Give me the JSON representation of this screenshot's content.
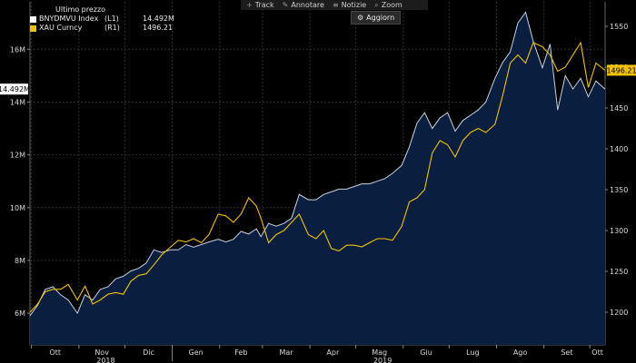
{
  "toolbar": {
    "items": [
      {
        "label": "Track",
        "icon": "crosshair-icon",
        "glyph": "+"
      },
      {
        "label": "Annotare",
        "icon": "pencil-icon",
        "glyph": "✎"
      },
      {
        "label": "Notizie",
        "icon": "news-icon",
        "glyph": "≡"
      },
      {
        "label": "Zoom",
        "icon": "magnifier-icon",
        "glyph": "⌕"
      }
    ],
    "refresh_label": "Aggiorn",
    "refresh_icon": "refresh-icon"
  },
  "legend": {
    "title": "Ultimo prezzo",
    "rows": [
      {
        "name": "BNYDMVU Index",
        "axis": "(L1)",
        "value": "14.492M",
        "color": "#ffffff"
      },
      {
        "name": "XAU Curncy",
        "axis": "(R1)",
        "value": "1496.21",
        "color": "#f2c200"
      }
    ]
  },
  "colors": {
    "background": "#000000",
    "area_fill": "#0a1f3f",
    "left_series": "#c8d0e0",
    "right_series": "#f2c200",
    "grid": "#2e2e2e"
  },
  "chart_data": {
    "type": "line",
    "x_axis": {
      "months": [
        "Ott",
        "Nov",
        "Dic",
        "Gen",
        "Feb",
        "Mar",
        "Apr",
        "Mag",
        "Giu",
        "Lug",
        "Ago",
        "Set",
        "Ott"
      ],
      "years": [
        "2018",
        "2019"
      ],
      "start": "2018-09-30",
      "end": "2019-10-11"
    },
    "y_left": {
      "ticks": [
        "6M",
        "8M",
        "10M",
        "12M",
        "14M",
        "16M"
      ],
      "range": [
        4800000,
        17800000
      ],
      "last_label": "14.492M"
    },
    "y_right": {
      "ticks": [
        "1200",
        "1250",
        "1300",
        "1350",
        "1400",
        "1450",
        "1500",
        "1550"
      ],
      "range": [
        1160,
        1580
      ],
      "last_label": "1496.21"
    },
    "series": [
      {
        "name": "BNYDMVU Index",
        "axis": "left",
        "kind": "area",
        "x": [
          "2018-09-30",
          "2018-10-05",
          "2018-10-10",
          "2018-10-15",
          "2018-10-20",
          "2018-10-25",
          "2018-10-31",
          "2018-11-05",
          "2018-11-10",
          "2018-11-15",
          "2018-11-20",
          "2018-11-25",
          "2018-11-30",
          "2018-12-05",
          "2018-12-10",
          "2018-12-15",
          "2018-12-20",
          "2018-12-25",
          "2018-12-31",
          "2019-01-05",
          "2019-01-10",
          "2019-01-15",
          "2019-01-20",
          "2019-01-25",
          "2019-01-31",
          "2019-02-05",
          "2019-02-10",
          "2019-02-15",
          "2019-02-20",
          "2019-02-25",
          "2019-02-28",
          "2019-03-05",
          "2019-03-10",
          "2019-03-15",
          "2019-03-20",
          "2019-03-25",
          "2019-03-31",
          "2019-04-05",
          "2019-04-10",
          "2019-04-15",
          "2019-04-20",
          "2019-04-25",
          "2019-04-30",
          "2019-05-05",
          "2019-05-10",
          "2019-05-15",
          "2019-05-20",
          "2019-05-25",
          "2019-05-31",
          "2019-06-05",
          "2019-06-10",
          "2019-06-15",
          "2019-06-20",
          "2019-06-25",
          "2019-06-30",
          "2019-07-05",
          "2019-07-10",
          "2019-07-15",
          "2019-07-20",
          "2019-07-25",
          "2019-07-31",
          "2019-08-05",
          "2019-08-10",
          "2019-08-15",
          "2019-08-20",
          "2019-08-25",
          "2019-08-31",
          "2019-09-05",
          "2019-09-10",
          "2019-09-15",
          "2019-09-20",
          "2019-09-25",
          "2019-09-30",
          "2019-10-05",
          "2019-10-11"
        ],
        "values": [
          5900000,
          6300000,
          6900000,
          7000000,
          6700000,
          6500000,
          6000000,
          6700000,
          6500000,
          6900000,
          7000000,
          7300000,
          7400000,
          7600000,
          7700000,
          7900000,
          8400000,
          8300000,
          8400000,
          8400000,
          8600000,
          8500000,
          8600000,
          8700000,
          8800000,
          8700000,
          8800000,
          9100000,
          9000000,
          9200000,
          8900000,
          9400000,
          9300000,
          9400000,
          9600000,
          10500000,
          10300000,
          10300000,
          10500000,
          10600000,
          10700000,
          10700000,
          10800000,
          10900000,
          10900000,
          11000000,
          11100000,
          11300000,
          11600000,
          12300000,
          13200000,
          13600000,
          13000000,
          13400000,
          13600000,
          12900000,
          13300000,
          13500000,
          13700000,
          14000000,
          14900000,
          15500000,
          15900000,
          17000000,
          17400000,
          16300000,
          15300000,
          16200000,
          13700000,
          15000000,
          14500000,
          14900000,
          14200000,
          14800000,
          14492000
        ]
      },
      {
        "name": "XAU Curncy",
        "axis": "right",
        "kind": "line",
        "x": [
          "2018-09-30",
          "2018-10-05",
          "2018-10-10",
          "2018-10-15",
          "2018-10-20",
          "2018-10-25",
          "2018-10-31",
          "2018-11-05",
          "2018-11-10",
          "2018-11-15",
          "2018-11-20",
          "2018-11-25",
          "2018-11-30",
          "2018-12-05",
          "2018-12-10",
          "2018-12-15",
          "2018-12-20",
          "2018-12-25",
          "2018-12-31",
          "2019-01-05",
          "2019-01-10",
          "2019-01-15",
          "2019-01-20",
          "2019-01-25",
          "2019-01-31",
          "2019-02-05",
          "2019-02-10",
          "2019-02-15",
          "2019-02-20",
          "2019-02-25",
          "2019-02-28",
          "2019-03-05",
          "2019-03-10",
          "2019-03-15",
          "2019-03-20",
          "2019-03-25",
          "2019-03-31",
          "2019-04-05",
          "2019-04-10",
          "2019-04-15",
          "2019-04-20",
          "2019-04-25",
          "2019-04-30",
          "2019-05-05",
          "2019-05-10",
          "2019-05-15",
          "2019-05-20",
          "2019-05-25",
          "2019-05-31",
          "2019-06-05",
          "2019-06-10",
          "2019-06-15",
          "2019-06-20",
          "2019-06-25",
          "2019-06-30",
          "2019-07-05",
          "2019-07-10",
          "2019-07-15",
          "2019-07-20",
          "2019-07-25",
          "2019-07-31",
          "2019-08-05",
          "2019-08-10",
          "2019-08-15",
          "2019-08-20",
          "2019-08-25",
          "2019-08-31",
          "2019-09-05",
          "2019-09-10",
          "2019-09-15",
          "2019-09-20",
          "2019-09-25",
          "2019-09-30",
          "2019-10-05",
          "2019-10-11"
        ],
        "values": [
          1200,
          1210,
          1225,
          1228,
          1228,
          1234,
          1215,
          1232,
          1210,
          1215,
          1222,
          1224,
          1222,
          1238,
          1245,
          1247,
          1258,
          1270,
          1280,
          1288,
          1286,
          1290,
          1285,
          1295,
          1320,
          1318,
          1310,
          1320,
          1340,
          1330,
          1315,
          1285,
          1295,
          1300,
          1310,
          1320,
          1295,
          1290,
          1300,
          1278,
          1275,
          1282,
          1282,
          1280,
          1285,
          1290,
          1290,
          1288,
          1305,
          1335,
          1340,
          1350,
          1395,
          1410,
          1405,
          1390,
          1410,
          1420,
          1425,
          1420,
          1430,
          1465,
          1505,
          1515,
          1505,
          1530,
          1525,
          1515,
          1495,
          1500,
          1515,
          1530,
          1475,
          1505,
          1496.21
        ]
      }
    ]
  }
}
